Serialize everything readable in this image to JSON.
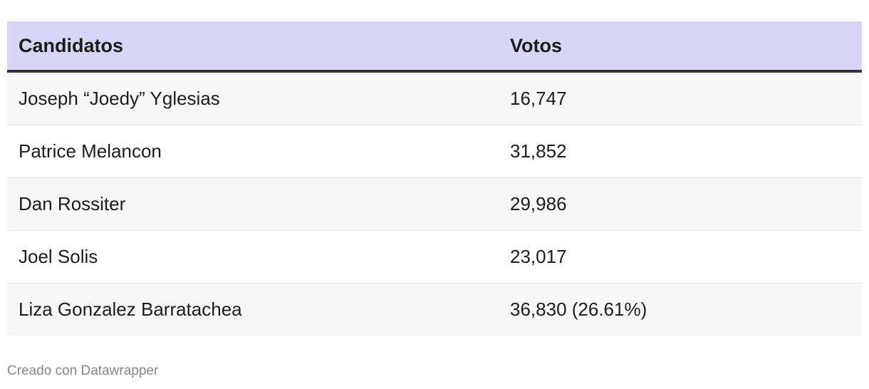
{
  "table": {
    "headers": [
      "Candidatos",
      "Votos"
    ],
    "rows": [
      [
        "Joseph “Joedy” Yglesias",
        "16,747"
      ],
      [
        "Patrice Melancon",
        "31,852"
      ],
      [
        "Dan Rossiter",
        "29,986"
      ],
      [
        "Joel Solis",
        "23,017"
      ],
      [
        "Liza Gonzalez Barratachea",
        "36,830 (26.61%)"
      ]
    ]
  },
  "footer": "Creado con Datawrapper",
  "colors": {
    "header_bg": "#d8d5f7",
    "header_border": "#333333",
    "stripe": "#f7f7f7"
  }
}
